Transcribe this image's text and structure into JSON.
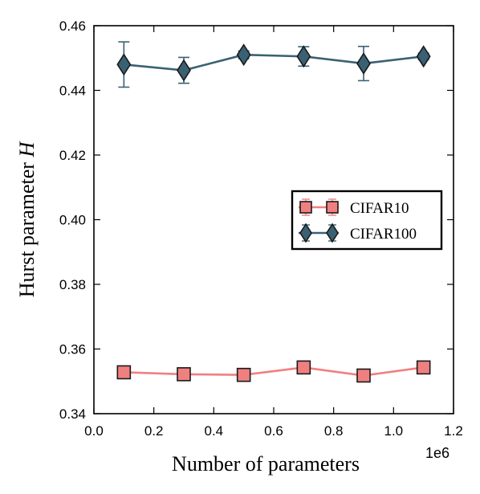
{
  "chart_data": {
    "type": "line",
    "xlabel": "Number of parameters",
    "ylabel": "Hurst parameter",
    "ylabel_symbol": "H",
    "x_offset_label": "1e6",
    "xlim": [
      0.0,
      1.2
    ],
    "ylim": [
      0.34,
      0.46
    ],
    "x_ticks": [
      0.0,
      0.2,
      0.4,
      0.6,
      0.8,
      1.0,
      1.2
    ],
    "x_tick_labels": [
      "0.0",
      "0.2",
      "0.4",
      "0.6",
      "0.8",
      "1.0",
      "1.2"
    ],
    "y_ticks": [
      0.34,
      0.36,
      0.38,
      0.4,
      0.42,
      0.44,
      0.46
    ],
    "y_tick_labels": [
      "0.34",
      "0.36",
      "0.38",
      "0.40",
      "0.42",
      "0.44",
      "0.46"
    ],
    "grid": false,
    "legend_position": "center-right",
    "x": [
      0.1,
      0.3,
      0.5,
      0.7,
      0.9,
      1.1
    ],
    "series": [
      {
        "name": "CIFAR10",
        "marker": "square",
        "color": "#f08080",
        "marker_edge": "#1a1a1a",
        "values": [
          0.3528,
          0.3522,
          0.352,
          0.3543,
          0.3518,
          0.3543
        ],
        "err": [
          0.0008,
          0.0008,
          0.0008,
          0.0008,
          0.0008,
          0.0008
        ]
      },
      {
        "name": "CIFAR100",
        "marker": "diamond",
        "color": "#3a6173",
        "marker_edge": "#1a1a1a",
        "values": [
          0.448,
          0.4462,
          0.451,
          0.4505,
          0.4483,
          0.4505
        ],
        "err": [
          0.007,
          0.004,
          0.0012,
          0.003,
          0.0053,
          0.001
        ]
      }
    ]
  }
}
